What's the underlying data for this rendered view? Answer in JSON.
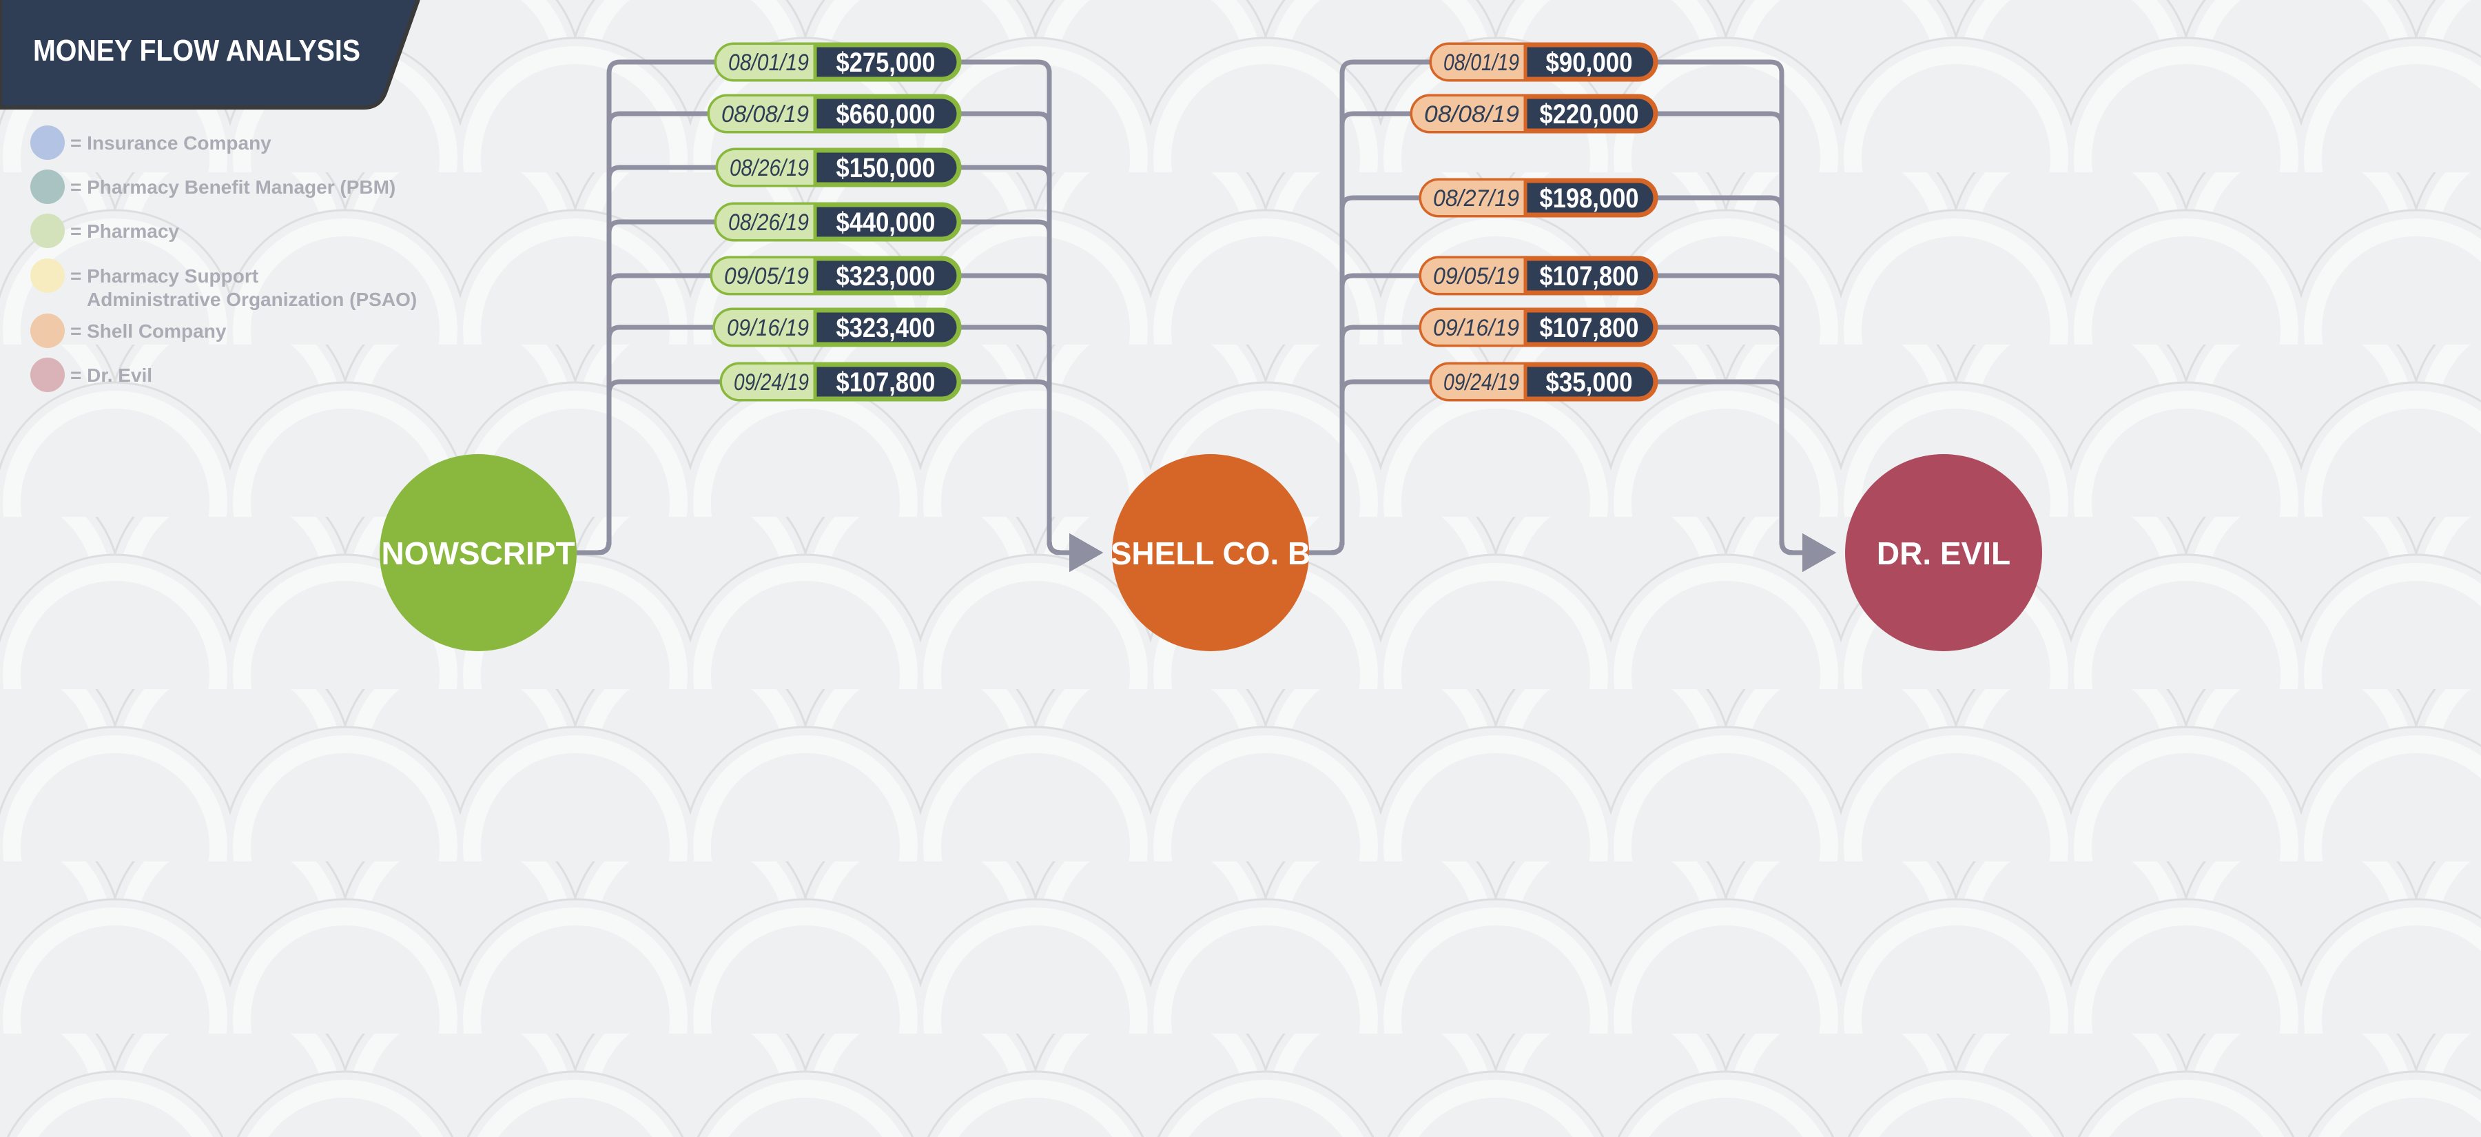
{
  "title": "MONEY FLOW ANALYSIS",
  "legend": [
    {
      "label": "= Insurance Company",
      "color": "#b3c3e3"
    },
    {
      "label": "= Pharmacy Benefit Manager (PBM)",
      "color": "#a9c3c3"
    },
    {
      "label": "= Pharmacy",
      "color": "#d3e2bb"
    },
    {
      "label": "= Pharmacy Support",
      "label2": "Administrative Organization (PSAO)",
      "color": "#f6ecc0"
    },
    {
      "label": "= Shell Company",
      "color": "#f0c9a9"
    },
    {
      "label": "= Dr. Evil",
      "color": "#d9b3b8"
    }
  ],
  "nodes": [
    {
      "id": "nowscript",
      "label": "NOWSCRIPT",
      "color": "#8ab83f"
    },
    {
      "id": "shell",
      "label": "SHELL CO. B",
      "color": "#d66628"
    },
    {
      "id": "drevil",
      "label": "DR. EVIL",
      "color": "#ad4a5e"
    }
  ],
  "colors": {
    "dark": "#2f3e55",
    "wire": "#8e8fa0",
    "green_border": "#8ab83f",
    "green_fill": "#d3e6b0",
    "orange_border": "#d66628",
    "orange_fill": "#f3c6a0"
  },
  "flows": [
    {
      "from": "NOWSCRIPT",
      "to": "SHELL CO. B",
      "style": "green",
      "transfers": [
        {
          "date": "08/01/19",
          "amount": "$275,000"
        },
        {
          "date": "08/08/19",
          "amount": "$660,000"
        },
        {
          "date": "08/26/19",
          "amount": "$150,000"
        },
        {
          "date": "08/26/19",
          "amount": "$440,000"
        },
        {
          "date": "09/05/19",
          "amount": "$323,000"
        },
        {
          "date": "09/16/19",
          "amount": "$323,400"
        },
        {
          "date": "09/24/19",
          "amount": "$107,800"
        }
      ]
    },
    {
      "from": "SHELL CO. B",
      "to": "DR. EVIL",
      "style": "orange",
      "transfers": [
        {
          "date": "08/01/19",
          "amount": "$90,000"
        },
        {
          "date": "08/08/19",
          "amount": "$220,000"
        },
        {
          "date": "08/27/19",
          "amount": "$198,000"
        },
        {
          "date": "09/05/19",
          "amount": "$107,800"
        },
        {
          "date": "09/16/19",
          "amount": "$107,800"
        },
        {
          "date": "09/24/19",
          "amount": "$35,000"
        }
      ]
    }
  ]
}
